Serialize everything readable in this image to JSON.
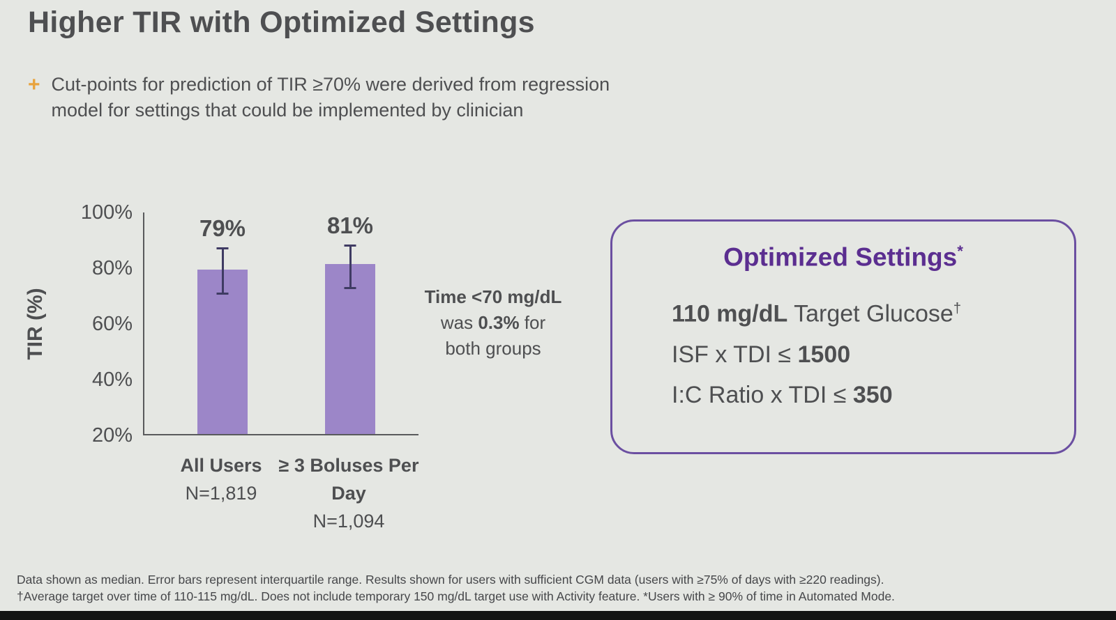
{
  "slide": {
    "title": "Higher TIR with Optimized Settings",
    "bullet": {
      "marker": "+",
      "line1": "Cut-points for prediction of TIR ≥70% were derived from regression",
      "line2": "model for settings that could be implemented by clinician"
    }
  },
  "chart_data": {
    "type": "bar",
    "ylabel": "TIR (%)",
    "ylim": [
      20,
      100
    ],
    "yticks": [
      "100%",
      "80%",
      "60%",
      "40%",
      "20%"
    ],
    "categories": [
      "All Users",
      "≥ 3 Boluses Per Day"
    ],
    "values": [
      79,
      81
    ],
    "bar_labels": [
      "79%",
      "81%"
    ],
    "error_bars": [
      {
        "low": 70,
        "high": 87
      },
      {
        "low": 72,
        "high": 88
      }
    ],
    "x_labels": [
      {
        "name": "All Users",
        "n": "N=1,819"
      },
      {
        "name": "≥ 3 Boluses Per Day",
        "n": "N=1,094"
      }
    ],
    "legend": "none",
    "grid": false
  },
  "annotation": {
    "bold1": "Time <70 mg/dL",
    "pre2": "was ",
    "bold2": "0.3%",
    "post2": " for",
    "line3": "both groups"
  },
  "settings_box": {
    "title": "Optimized Settings",
    "title_sup": "*",
    "rows": [
      {
        "bold": "110 mg/dL",
        "rest": " Target Glucose",
        "sup": "†"
      },
      {
        "pre": "ISF x TDI ≤ ",
        "bold": "1500"
      },
      {
        "pre": "I:C Ratio x TDI ≤ ",
        "bold": "350"
      }
    ]
  },
  "footnotes": {
    "line1": "Data shown as median. Error bars represent interquartile range. Results shown for users with sufficient CGM data (users with ≥75% of days with ≥220 readings).",
    "line2": "†Average target over time of 110-115 mg/dL. Does not include temporary 150 mg/dL target use with Activity feature. *Users with ≥ 90% of time in Automated Mode."
  },
  "colors": {
    "background": "#e5e7e3",
    "text": "#4e4f51",
    "bar": "#9c86c8",
    "error-bar": "#3f3b63",
    "box-border": "#6b4fa1",
    "box-title": "#5b2e90",
    "plus": "#e8a33d"
  }
}
